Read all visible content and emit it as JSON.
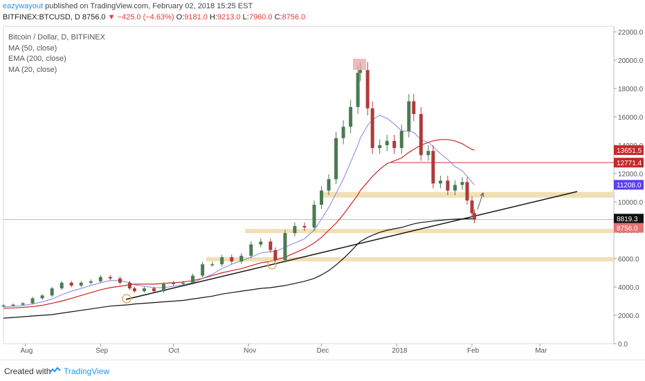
{
  "header": {
    "user": "eazywayout",
    "published": "published on TradingView.com, February 02, 2018 15:25 EST",
    "symbol": "BITFINEX:BTCUSD, D",
    "last": "8756.0",
    "change": "−425.0 (−4.63%)",
    "o_label": "O:",
    "o": "9181.0",
    "h_label": "H:",
    "h": "9213.0",
    "l_label": "L:",
    "l": "7960.0",
    "c_label": "C:",
    "c": "8756.0"
  },
  "legend": {
    "title": "Bitcoin / Dollar, D, BITFINEX",
    "items": [
      "MA (50, close)",
      "EMA (200, close)",
      "MA (20, close)"
    ]
  },
  "footer": {
    "created": "Created with",
    "brand": "TradingView"
  },
  "colors": {
    "up": "#4a7a52",
    "down": "#b03a3a",
    "ma50": "#cc2222",
    "ema200": "#111111",
    "ma20": "#8a7fe0",
    "zone": "#f0d9a8",
    "hline": "#cc3333",
    "price_line": "#f3a6a6"
  },
  "chart_data": {
    "type": "candlestick",
    "title": "Bitcoin / Dollar, D, BITFINEX",
    "x_tick_labels": [
      "Aug",
      "Sep",
      "Oct",
      "Nov",
      "Dec",
      "2018",
      "Feb",
      "Mar"
    ],
    "y_tick_labels": [
      "0.0",
      "2000.0",
      "4000.0",
      "6000.0",
      "8000.0",
      "10000.0",
      "12000.0",
      "14000.0",
      "16000.0",
      "18000.0",
      "20000.0",
      "22000.0"
    ],
    "ylim": [
      0,
      22000
    ],
    "x_dates": [
      "2017-07-23",
      "2017-07-27",
      "2017-07-31",
      "2017-08-04",
      "2017-08-08",
      "2017-08-12",
      "2017-08-16",
      "2017-08-20",
      "2017-08-24",
      "2017-08-28",
      "2017-09-01",
      "2017-09-05",
      "2017-09-09",
      "2017-09-13",
      "2017-09-15",
      "2017-09-19",
      "2017-09-23",
      "2017-09-27",
      "2017-10-01",
      "2017-10-05",
      "2017-10-09",
      "2017-10-13",
      "2017-10-17",
      "2017-10-21",
      "2017-10-25",
      "2017-10-29",
      "2017-11-02",
      "2017-11-06",
      "2017-11-10",
      "2017-11-12",
      "2017-11-16",
      "2017-11-20",
      "2017-11-24",
      "2017-11-28",
      "2017-12-01",
      "2017-12-04",
      "2017-12-07",
      "2017-12-10",
      "2017-12-13",
      "2017-12-16",
      "2017-12-17",
      "2017-12-20",
      "2017-12-22",
      "2017-12-25",
      "2017-12-28",
      "2017-12-31",
      "2018-01-03",
      "2018-01-06",
      "2018-01-08",
      "2018-01-11",
      "2018-01-14",
      "2018-01-16",
      "2018-01-19",
      "2018-01-22",
      "2018-01-25",
      "2018-01-28",
      "2018-01-30",
      "2018-02-01",
      "2018-02-02"
    ],
    "close": [
      2700,
      2750,
      2850,
      3200,
      3400,
      3900,
      4300,
      4100,
      4300,
      4400,
      4700,
      4600,
      4300,
      3900,
      3700,
      3900,
      3700,
      4200,
      4300,
      4300,
      4800,
      5600,
      5600,
      6100,
      5800,
      6200,
      7000,
      7200,
      6600,
      5900,
      7800,
      8300,
      8200,
      9800,
      10800,
      11600,
      14500,
      15300,
      16700,
      19100,
      19300,
      16600,
      13800,
      14000,
      14300,
      13800,
      15000,
      17100,
      16200,
      13300,
      13600,
      11300,
      11500,
      10800,
      11200,
      11400,
      10100,
      9200,
      8756
    ],
    "ma20": [
      2600,
      2650,
      2700,
      2800,
      2950,
      3150,
      3450,
      3700,
      3900,
      4100,
      4300,
      4450,
      4450,
      4300,
      4150,
      4050,
      3950,
      3950,
      4050,
      4150,
      4300,
      4600,
      4900,
      5300,
      5600,
      5850,
      6100,
      6400,
      6500,
      6500,
      6800,
      7100,
      7400,
      8000,
      8800,
      9600,
      10600,
      11600,
      12800,
      14000,
      14500,
      15400,
      15800,
      16100,
      15900,
      15500,
      15000,
      15000,
      14900,
      14400,
      14200,
      13900,
      13400,
      13000,
      12500,
      12200,
      11800,
      11400,
      11200
    ],
    "ma50": [
      2500,
      2520,
      2560,
      2620,
      2700,
      2850,
      3000,
      3200,
      3400,
      3600,
      3800,
      3950,
      4050,
      4150,
      4200,
      4200,
      4200,
      4250,
      4300,
      4350,
      4450,
      4600,
      4800,
      5000,
      5150,
      5300,
      5500,
      5700,
      5800,
      5900,
      6100,
      6400,
      6700,
      7100,
      7500,
      8000,
      8500,
      9100,
      9800,
      10500,
      10800,
      11400,
      11800,
      12300,
      12700,
      12900,
      13100,
      13500,
      13700,
      14000,
      14200,
      14300,
      14400,
      14400,
      14300,
      14100,
      13900,
      13700,
      13651.5
    ],
    "ema200": [
      1800,
      1850,
      1900,
      1950,
      2000,
      2050,
      2150,
      2250,
      2350,
      2450,
      2550,
      2650,
      2700,
      2750,
      2800,
      2850,
      2900,
      2950,
      3000,
      3050,
      3150,
      3250,
      3350,
      3500,
      3600,
      3700,
      3800,
      3900,
      3950,
      4000,
      4100,
      4250,
      4400,
      4600,
      4850,
      5150,
      5550,
      6000,
      6500,
      7050,
      7200,
      7500,
      7650,
      7850,
      8000,
      8100,
      8200,
      8350,
      8450,
      8550,
      8600,
      8650,
      8700,
      8750,
      8780,
      8800,
      8810,
      8815,
      8819.3
    ],
    "horizontal_line": 12771.4,
    "zones": [
      [
        10300,
        10700
      ],
      [
        7800,
        8100
      ],
      [
        5800,
        6100
      ]
    ],
    "price_labels": [
      {
        "value": 13651.5,
        "label": "13651.5"
      },
      {
        "value": 12771.4,
        "label": "12771.4"
      },
      {
        "value": 11208.0,
        "label": "11208.0"
      },
      {
        "value": 8819.3,
        "label": "8819.3"
      },
      {
        "value": 8756.0,
        "label": "8756.0"
      }
    ]
  }
}
